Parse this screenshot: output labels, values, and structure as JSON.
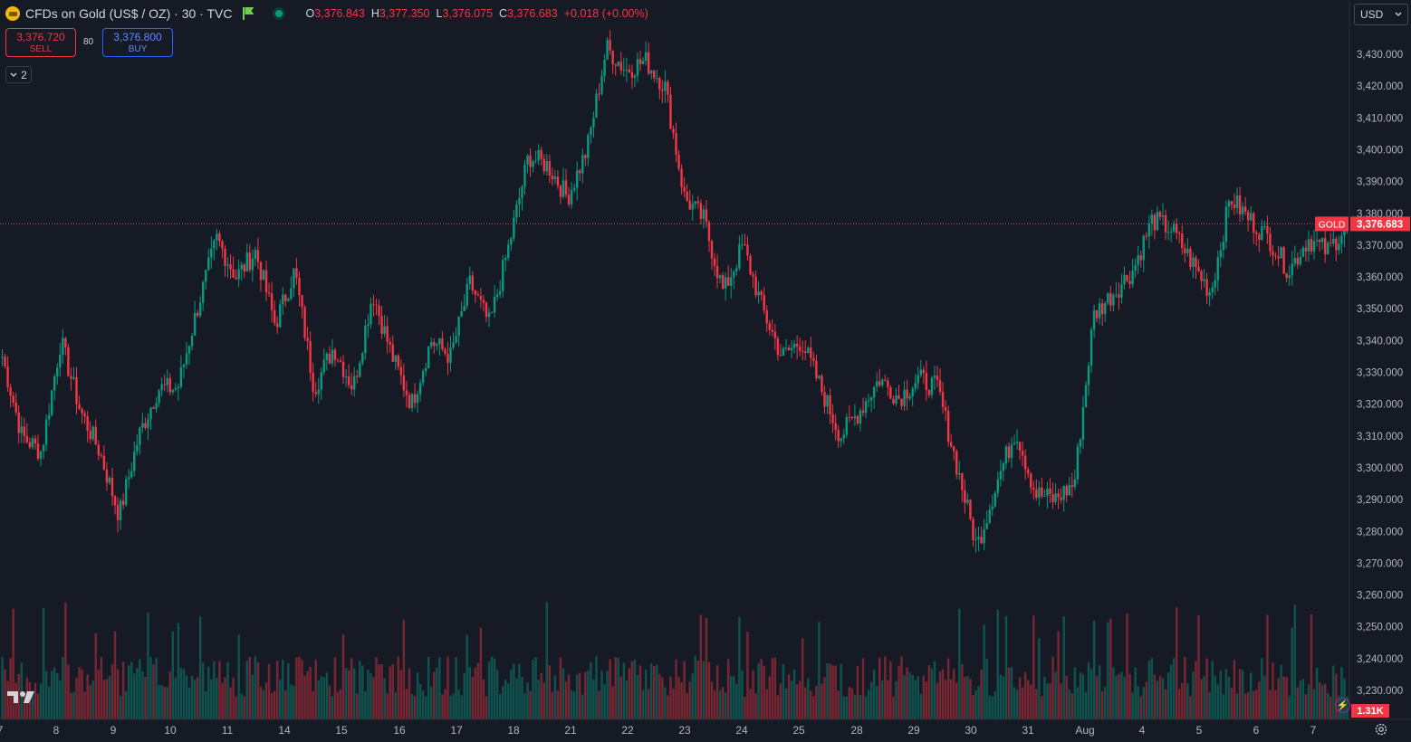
{
  "header": {
    "symbol_title": "CFDs on Gold (US$ / OZ) · 30 · TVC",
    "ohlc": {
      "o_label": "O",
      "o_value": "3,376.843",
      "h_label": "H",
      "h_value": "3,377.350",
      "l_label": "L",
      "l_value": "3,376.075",
      "c_label": "C",
      "c_value": "3,376.683",
      "change": "+0.018 (+0.00%)"
    }
  },
  "trade": {
    "sell_price": "3,376.720",
    "sell_label": "SELL",
    "spread": "80",
    "buy_price": "3,376.800",
    "buy_label": "BUY"
  },
  "indicators_toggle": "2",
  "currency": "USD",
  "volume_label": "1.31K",
  "colors": {
    "up": "#089981",
    "down": "#f23645",
    "background": "#161a25",
    "text": "#d1d4dc"
  },
  "chart_data": {
    "type": "candlestick",
    "interval": "30",
    "ylim": [
      3223,
      3441
    ],
    "y_ticks": [
      3430,
      3420,
      3410,
      3400,
      3390,
      3380,
      3370,
      3360,
      3350,
      3340,
      3330,
      3320,
      3310,
      3300,
      3290,
      3280,
      3270,
      3260,
      3250,
      3240,
      3230
    ],
    "y_tick_labels": [
      "3,430.000",
      "3,420.000",
      "3,410.000",
      "3,400.000",
      "3,390.000",
      "3,380.000",
      "3,370.000",
      "3,360.000",
      "3,350.000",
      "3,340.000",
      "3,330.000",
      "3,320.000",
      "3,310.000",
      "3,300.000",
      "3,290.000",
      "3,280.000",
      "3,270.000",
      "3,260.000",
      "3,250.000",
      "3,240.000",
      "3,230.000"
    ],
    "x_tick_labels": [
      "7",
      "8",
      "9",
      "10",
      "11",
      "14",
      "15",
      "16",
      "17",
      "18",
      "21",
      "22",
      "23",
      "24",
      "25",
      "28",
      "29",
      "30",
      "31",
      "Aug",
      "4",
      "5",
      "6",
      "7"
    ],
    "last_price": 3376.683,
    "last_price_label": "3,376.683",
    "last_price_tag": "GOLD",
    "price_path": [
      {
        "x": "7",
        "y": 3335
      },
      {
        "x": "7",
        "y": 3310
      },
      {
        "x": "7.5",
        "y": 3305
      },
      {
        "x": "8",
        "y": 3340
      },
      {
        "x": "8.5",
        "y": 3318
      },
      {
        "x": "9",
        "y": 3305
      },
      {
        "x": "9.5",
        "y": 3285
      },
      {
        "x": "10",
        "y": 3310
      },
      {
        "x": "10.5",
        "y": 3325
      },
      {
        "x": "11",
        "y": 3325
      },
      {
        "x": "11.5",
        "y": 3350
      },
      {
        "x": "14",
        "y": 3372
      },
      {
        "x": "14.3",
        "y": 3360
      },
      {
        "x": "14.5",
        "y": 3368
      },
      {
        "x": "15",
        "y": 3345
      },
      {
        "x": "15.5",
        "y": 3362
      },
      {
        "x": "16",
        "y": 3325
      },
      {
        "x": "16.5",
        "y": 3338
      },
      {
        "x": "16.8",
        "y": 3325
      },
      {
        "x": "17",
        "y": 3355
      },
      {
        "x": "17.5",
        "y": 3335
      },
      {
        "x": "17.8",
        "y": 3320
      },
      {
        "x": "18",
        "y": 3340
      },
      {
        "x": "18.5",
        "y": 3335
      },
      {
        "x": "18.7",
        "y": 3358
      },
      {
        "x": "19",
        "y": 3345
      },
      {
        "x": "21",
        "y": 3370
      },
      {
        "x": "21.7",
        "y": 3398
      },
      {
        "x": "22",
        "y": 3395
      },
      {
        "x": "22.5",
        "y": 3385
      },
      {
        "x": "22.8",
        "y": 3400
      },
      {
        "x": "23",
        "y": 3432
      },
      {
        "x": "23.4",
        "y": 3425
      },
      {
        "x": "23.6",
        "y": 3428
      },
      {
        "x": "23.8",
        "y": 3420
      },
      {
        "x": "24",
        "y": 3385
      },
      {
        "x": "24.5",
        "y": 3378
      },
      {
        "x": "24.8",
        "y": 3355
      },
      {
        "x": "25",
        "y": 3370
      },
      {
        "x": "25.5",
        "y": 3350
      },
      {
        "x": "25.8",
        "y": 3335
      },
      {
        "x": "28",
        "y": 3340
      },
      {
        "x": "28.3",
        "y": 3325
      },
      {
        "x": "28.6",
        "y": 3310
      },
      {
        "x": "29",
        "y": 3318
      },
      {
        "x": "29.5",
        "y": 3328
      },
      {
        "x": "29.8",
        "y": 3322
      },
      {
        "x": "30",
        "y": 3328
      },
      {
        "x": "30.5",
        "y": 3325
      },
      {
        "x": "30.8",
        "y": 3300
      },
      {
        "x": "31",
        "y": 3275
      },
      {
        "x": "31.3",
        "y": 3295
      },
      {
        "x": "31.5",
        "y": 3312
      },
      {
        "x": "31.8",
        "y": 3292
      },
      {
        "x": "Aug",
        "y": 3290
      },
      {
        "x": "Aug.5",
        "y": 3295
      },
      {
        "x": "Aug.7",
        "y": 3348
      },
      {
        "x": "4",
        "y": 3355
      },
      {
        "x": "4.5",
        "y": 3362
      },
      {
        "x": "4.8",
        "y": 3378
      },
      {
        "x": "5",
        "y": 3375
      },
      {
        "x": "5.5",
        "y": 3365
      },
      {
        "x": "5.7",
        "y": 3355
      },
      {
        "x": "6",
        "y": 3385
      },
      {
        "x": "6.3",
        "y": 3378
      },
      {
        "x": "6.5",
        "y": 3372
      },
      {
        "x": "6.8",
        "y": 3362
      },
      {
        "x": "7b",
        "y": 3372
      },
      {
        "x": "7.3",
        "y": 3368
      },
      {
        "x": "7.5",
        "y": 3376.683
      }
    ]
  }
}
